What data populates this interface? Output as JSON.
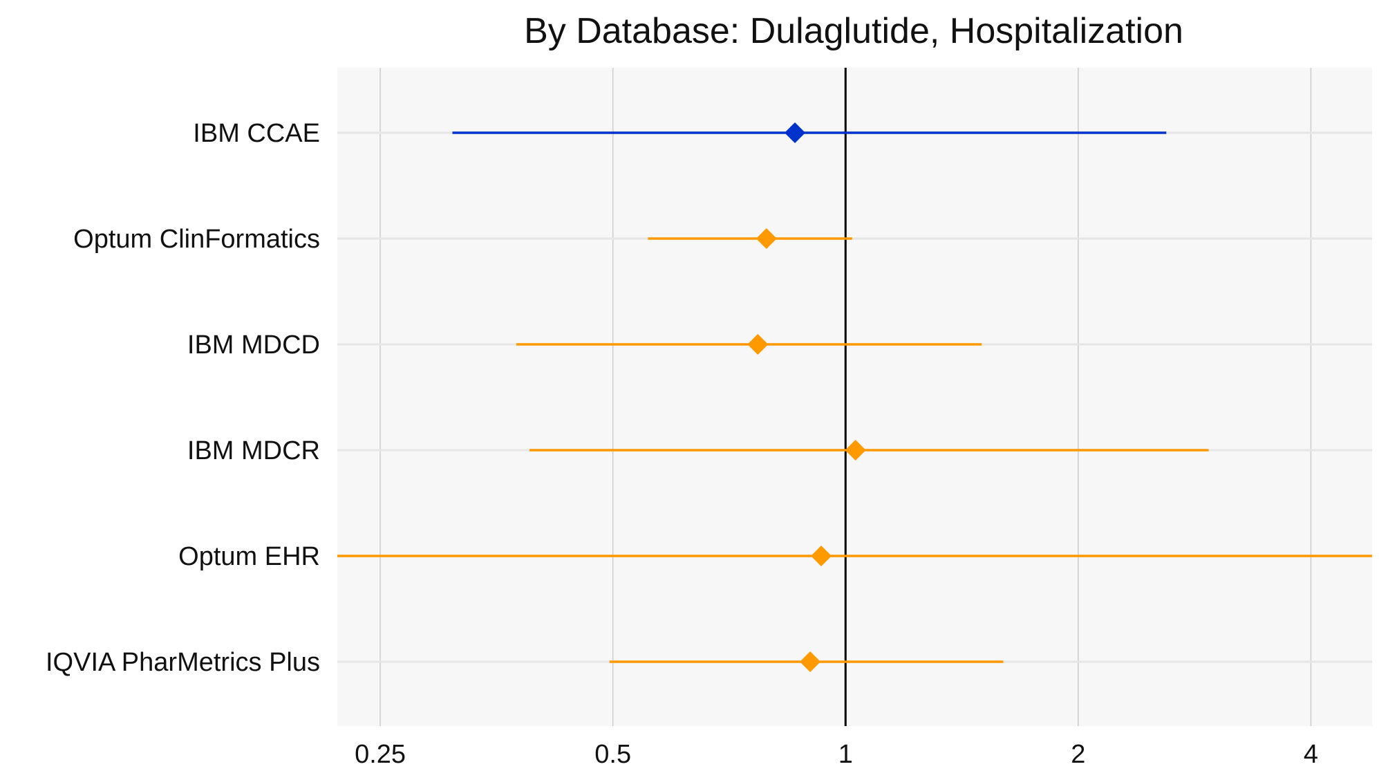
{
  "chart_data": {
    "type": "forest",
    "title": "By Database: Dulaglutide, Hospitalization",
    "xlabel": "",
    "ylabel": "",
    "x_scale": "log",
    "xlim": [
      0.22,
      4.8
    ],
    "x_ticks": [
      0.25,
      0.5,
      1,
      2,
      4
    ],
    "x_tick_labels": [
      "0.25",
      "0.5",
      "1",
      "2",
      "4"
    ],
    "reference_line": 1,
    "grid": true,
    "colors": {
      "panel_background": "#f7f7f7",
      "gridline": "#cccccc",
      "row_gridline": "#e6e6e6",
      "reference_line": "#000000",
      "meta_analysis": "#0033cc",
      "database": "#ff9900"
    },
    "rows": [
      {
        "label": "IBM CCAE",
        "estimate": 0.86,
        "ci_low": 0.31,
        "ci_high": 2.6,
        "color": "#0033cc"
      },
      {
        "label": "Optum ClinFormatics",
        "estimate": 0.79,
        "ci_low": 0.555,
        "ci_high": 1.02,
        "color": "#ff9900"
      },
      {
        "label": "IBM MDCD",
        "estimate": 0.77,
        "ci_low": 0.375,
        "ci_high": 1.5,
        "color": "#ff9900"
      },
      {
        "label": "IBM MDCR",
        "estimate": 1.03,
        "ci_low": 0.39,
        "ci_high": 2.95,
        "color": "#ff9900"
      },
      {
        "label": "Optum EHR",
        "estimate": 0.93,
        "ci_low": 0.1,
        "ci_high": 10,
        "color": "#ff9900"
      },
      {
        "label": "IQVIA PharMetrics Plus",
        "estimate": 0.9,
        "ci_low": 0.495,
        "ci_high": 1.6,
        "color": "#ff9900"
      }
    ]
  }
}
